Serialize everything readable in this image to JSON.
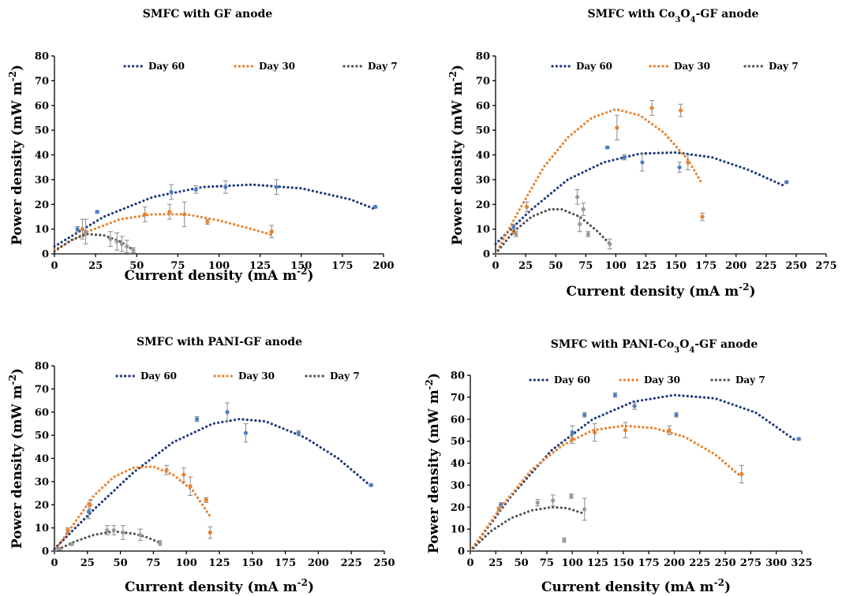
{
  "chart_data": [
    {
      "type": "scatter",
      "title": "SMFC with GF anode",
      "xlabel": "Current density (mA m-2)",
      "ylabel": "Power density (mW m-2)",
      "xlim": [
        0,
        200
      ],
      "ylim": [
        0,
        80
      ],
      "xticks": [
        "0",
        "25",
        "50",
        "75",
        "100",
        "125",
        "150",
        "175",
        "200"
      ],
      "yticks": [
        "0",
        "10",
        "20",
        "30",
        "40",
        "50",
        "60",
        "70",
        "80"
      ],
      "series": [
        {
          "name": "Day 60",
          "color": "#1f3a7a",
          "marker": "#4a7ec7",
          "points": [
            [
              14,
              10
            ],
            [
              26,
              17
            ],
            [
              71,
              25
            ],
            [
              86,
              26
            ],
            [
              104,
              27
            ],
            [
              135,
              27
            ],
            [
              195,
              19
            ]
          ],
          "errors": [
            1,
            0.5,
            3,
            1.5,
            2.5,
            3,
            0.5
          ],
          "fit": [
            [
              0,
              3
            ],
            [
              30,
              15
            ],
            [
              60,
              23
            ],
            [
              90,
              27
            ],
            [
              120,
              28
            ],
            [
              150,
              26.5
            ],
            [
              180,
              22
            ],
            [
              195,
              18
            ]
          ]
        },
        {
          "name": "Day 30",
          "color": "#e8822e",
          "marker": "#e8822e",
          "points": [
            [
              17,
              10
            ],
            [
              55,
              16
            ],
            [
              70,
              17
            ],
            [
              79,
              16
            ],
            [
              93,
              13
            ],
            [
              132,
              9
            ]
          ],
          "errors": [
            4,
            3,
            3,
            5,
            1,
            2.5
          ],
          "fit": [
            [
              0,
              1.5
            ],
            [
              20,
              9
            ],
            [
              40,
              14
            ],
            [
              60,
              16
            ],
            [
              80,
              16
            ],
            [
              100,
              13.5
            ],
            [
              120,
              10
            ],
            [
              133,
              7.5
            ]
          ]
        },
        {
          "name": "Day 7",
          "color": "#545454",
          "marker": "#9a9a9a",
          "points": [
            [
              19,
              9
            ],
            [
              34,
              6
            ],
            [
              38,
              5
            ],
            [
              41,
              4
            ],
            [
              44,
              3
            ],
            [
              48,
              1.5
            ]
          ],
          "errors": [
            5,
            3,
            3.5,
            3,
            2.5,
            1
          ],
          "fit": [
            [
              0,
              1
            ],
            [
              10,
              5.5
            ],
            [
              20,
              8
            ],
            [
              30,
              7.5
            ],
            [
              40,
              5
            ],
            [
              47,
              2
            ]
          ]
        }
      ]
    },
    {
      "type": "scatter",
      "title": "SMFC with Co₃O₄-GF anode",
      "xlabel": "Current density (mA m-2)",
      "ylabel": "Power density (mW m-2)",
      "xlim": [
        0,
        275
      ],
      "ylim": [
        0,
        80
      ],
      "xticks": [
        "0",
        "25",
        "50",
        "75",
        "100",
        "125",
        "150",
        "175",
        "200",
        "225",
        "250",
        "275"
      ],
      "yticks": [
        "0",
        "10",
        "20",
        "30",
        "40",
        "50",
        "60",
        "70",
        "80"
      ],
      "series": [
        {
          "name": "Day 60",
          "color": "#1f3a7a",
          "marker": "#4a7ec7",
          "points": [
            [
              15,
              11
            ],
            [
              93,
              43
            ],
            [
              107,
              39
            ],
            [
              122,
              37
            ],
            [
              153,
              35
            ],
            [
              242,
              29
            ]
          ],
          "errors": [
            1,
            0.5,
            1,
            3.5,
            2,
            0.5
          ],
          "fit": [
            [
              0,
              4
            ],
            [
              30,
              18
            ],
            [
              60,
              30
            ],
            [
              90,
              37
            ],
            [
              120,
              40.5
            ],
            [
              150,
              41
            ],
            [
              180,
              39
            ],
            [
              210,
              34
            ],
            [
              240,
              27.5
            ]
          ]
        },
        {
          "name": "Day 30",
          "color": "#e8822e",
          "marker": "#e8822e",
          "points": [
            [
              15,
              9
            ],
            [
              26,
              19
            ],
            [
              101,
              51
            ],
            [
              130,
              59
            ],
            [
              154,
              58
            ],
            [
              160,
              37
            ],
            [
              172,
              15
            ]
          ],
          "errors": [
            1,
            2,
            5,
            3,
            2.5,
            3,
            1.5
          ],
          "fit": [
            [
              0,
              0
            ],
            [
              20,
              18
            ],
            [
              40,
              35
            ],
            [
              60,
              47
            ],
            [
              80,
              55
            ],
            [
              100,
              58.5
            ],
            [
              120,
              56
            ],
            [
              140,
              49
            ],
            [
              160,
              38
            ],
            [
              171,
              29
            ]
          ]
        },
        {
          "name": "Day 7",
          "color": "#545454",
          "marker": "#9a9a9a",
          "points": [
            [
              17,
              8
            ],
            [
              68,
              23
            ],
            [
              70,
              12
            ],
            [
              73,
              18
            ],
            [
              77,
              8
            ],
            [
              95,
              4
            ]
          ],
          "errors": [
            1,
            3,
            3,
            2.5,
            1,
            2
          ],
          "fit": [
            [
              0,
              0
            ],
            [
              15,
              9
            ],
            [
              30,
              15
            ],
            [
              45,
              18
            ],
            [
              55,
              18
            ],
            [
              70,
              15
            ],
            [
              85,
              9
            ],
            [
              95,
              4
            ]
          ]
        }
      ]
    },
    {
      "type": "scatter",
      "title": "SMFC with PANI-GF anode",
      "xlabel": "Current density (mA m-2)",
      "ylabel": "Power density (mW m-2)",
      "xlim": [
        0,
        250
      ],
      "ylim": [
        0,
        80
      ],
      "xticks": [
        "0",
        "25",
        "50",
        "75",
        "100",
        "125",
        "150",
        "175",
        "200",
        "225",
        "250"
      ],
      "yticks": [
        "0",
        "10",
        "20",
        "30",
        "40",
        "50",
        "60",
        "70",
        "80"
      ],
      "series": [
        {
          "name": "Day 60",
          "color": "#1f3a7a",
          "marker": "#4a7ec7",
          "points": [
            [
              26,
              17
            ],
            [
              108,
              57
            ],
            [
              131,
              60
            ],
            [
              145,
              51
            ],
            [
              185,
              51
            ],
            [
              240,
              28.5
            ]
          ],
          "errors": [
            3,
            1,
            4,
            4,
            1,
            0.5
          ],
          "fit": [
            [
              0,
              1
            ],
            [
              30,
              18
            ],
            [
              60,
              34
            ],
            [
              90,
              47
            ],
            [
              120,
              55
            ],
            [
              140,
              57
            ],
            [
              160,
              56
            ],
            [
              190,
              49
            ],
            [
              215,
              40
            ],
            [
              240,
              28
            ]
          ]
        },
        {
          "name": "Day 30",
          "color": "#e8822e",
          "marker": "#e8822e",
          "points": [
            [
              10,
              9
            ],
            [
              27,
              20
            ],
            [
              85,
              35
            ],
            [
              98,
              33
            ],
            [
              103,
              28
            ],
            [
              115,
              22
            ],
            [
              118,
              8
            ]
          ],
          "errors": [
            1,
            2,
            2,
            3,
            4,
            1,
            2.5
          ],
          "fit": [
            [
              0,
              0
            ],
            [
              15,
              12
            ],
            [
              30,
              24
            ],
            [
              45,
              32
            ],
            [
              60,
              36
            ],
            [
              75,
              36.5
            ],
            [
              90,
              33
            ],
            [
              105,
              26
            ],
            [
              118,
              15
            ]
          ]
        },
        {
          "name": "Day 7",
          "color": "#545454",
          "marker": "#9a9a9a",
          "points": [
            [
              4,
              1
            ],
            [
              13,
              3
            ],
            [
              40,
              9
            ],
            [
              45,
              9
            ],
            [
              52,
              8
            ],
            [
              65,
              7
            ],
            [
              80,
              3.5
            ]
          ],
          "errors": [
            0.5,
            0.5,
            2,
            2,
            3,
            2.5,
            1
          ],
          "fit": [
            [
              0,
              0
            ],
            [
              15,
              4
            ],
            [
              30,
              7
            ],
            [
              45,
              8.5
            ],
            [
              60,
              7.5
            ],
            [
              70,
              6
            ],
            [
              80,
              3.5
            ]
          ]
        }
      ]
    },
    {
      "type": "scatter",
      "title": "SMFC with PANI-Co₃O₄-GF anode",
      "xlabel": "Current density (mA m-2)",
      "ylabel": "Power density (mW m-2)",
      "xlim": [
        0,
        325
      ],
      "ylim": [
        0,
        80
      ],
      "xticks": [
        "0",
        "25",
        "50",
        "75",
        "100",
        "125",
        "150",
        "175",
        "200",
        "225",
        "250",
        "275",
        "300",
        "325"
      ],
      "yticks": [
        "0",
        "10",
        "20",
        "30",
        "40",
        "50",
        "60",
        "70",
        "80"
      ],
      "series": [
        {
          "name": "Day 60",
          "color": "#1f3a7a",
          "marker": "#4a7ec7",
          "points": [
            [
              30,
              21
            ],
            [
              100,
              54
            ],
            [
              112,
              62
            ],
            [
              142,
              71
            ],
            [
              161,
              66
            ],
            [
              202,
              62
            ],
            [
              322,
              51
            ]
          ],
          "errors": [
            1,
            3,
            1,
            1,
            1.5,
            1,
            0.5
          ],
          "fit": [
            [
              0,
              0
            ],
            [
              40,
              25
            ],
            [
              80,
              46
            ],
            [
              120,
              60
            ],
            [
              160,
              68
            ],
            [
              200,
              71
            ],
            [
              240,
              69.5
            ],
            [
              280,
              63
            ],
            [
              320,
              50
            ]
          ]
        },
        {
          "name": "Day 30",
          "color": "#e8822e",
          "marker": "#e8822e",
          "points": [
            [
              28,
              19
            ],
            [
              100,
              51
            ],
            [
              122,
              54
            ],
            [
              152,
              55
            ],
            [
              195,
              55
            ],
            [
              266,
              35
            ]
          ],
          "errors": [
            1,
            2,
            4,
            3.5,
            2,
            4
          ],
          "fit": [
            [
              0,
              0
            ],
            [
              30,
              20
            ],
            [
              60,
              37
            ],
            [
              90,
              48
            ],
            [
              120,
              55
            ],
            [
              150,
              57
            ],
            [
              180,
              56
            ],
            [
              210,
              52
            ],
            [
              240,
              44
            ],
            [
              265,
              34
            ]
          ]
        },
        {
          "name": "Day 7",
          "color": "#545454",
          "marker": "#9a9a9a",
          "points": [
            [
              66,
              22
            ],
            [
              81,
              23
            ],
            [
              92,
              5
            ],
            [
              99,
              25
            ],
            [
              112,
              19
            ]
          ],
          "errors": [
            1.5,
            2.5,
            1,
            1,
            5
          ],
          "fit": [
            [
              0,
              0
            ],
            [
              20,
              9
            ],
            [
              40,
              15
            ],
            [
              60,
              18.5
            ],
            [
              80,
              20
            ],
            [
              95,
              19.5
            ],
            [
              112,
              17
            ]
          ]
        }
      ]
    }
  ]
}
